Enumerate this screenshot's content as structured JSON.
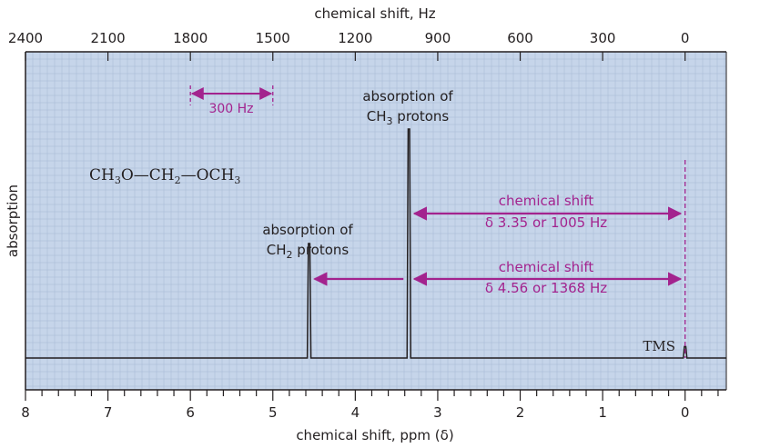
{
  "chart_data": {
    "type": "line",
    "title": "",
    "xlabel": "chemical shift, ppm (δ)",
    "x2label": "chemical shift, Hz",
    "ylabel": "absorption",
    "xlim": [
      8,
      -0.5
    ],
    "x_ticks_ppm": [
      "8",
      "7",
      "6",
      "5",
      "4",
      "3",
      "2",
      "1",
      "0"
    ],
    "x2_ticks_hz": [
      "2400",
      "2100",
      "1800",
      "1500",
      "1200",
      "900",
      "600",
      "300",
      "0"
    ],
    "hz_per_ppm": 300,
    "grid": true,
    "peaks": [
      {
        "ppm": 4.56,
        "relative_height": 0.5
      },
      {
        "ppm": 3.35,
        "relative_height": 1.0
      },
      {
        "ppm": 0.0,
        "relative_height": 0.05
      }
    ],
    "annotations": {
      "ch3_label_line1": "absorption of",
      "ch3_label_line2_prefix": "CH",
      "ch3_label_line2_sub": "3",
      "ch3_label_line2_suffix": " protons",
      "ch2_label_line1": "absorption of",
      "ch2_label_line2_prefix": "CH",
      "ch2_label_line2_sub": "2",
      "ch2_label_line2_suffix": " protons",
      "scale_label": "300 Hz",
      "shift1_line1": "chemical shift",
      "shift1_line2": "δ 3.35 or 1005 Hz",
      "shift2_line1": "chemical shift",
      "shift2_line2": "δ 4.56 or 1368 Hz",
      "tms_label": "TMS",
      "formula": {
        "a": "CH",
        "a_sub": "3",
        "b": "O—CH",
        "b_sub": "2",
        "c": "—OCH",
        "c_sub": "3"
      }
    }
  },
  "colors": {
    "plot_bg": "#c6d5ea",
    "grid": "#a6b8d4",
    "accent": "#a3238e",
    "ink": "#231f20"
  }
}
